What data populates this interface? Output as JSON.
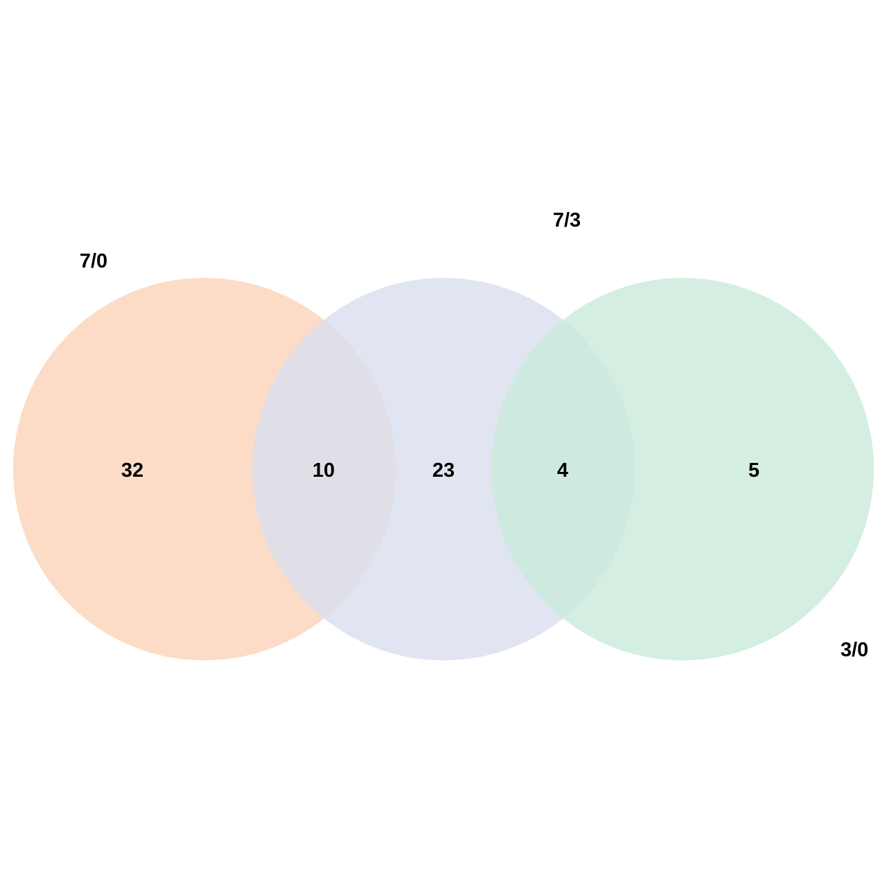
{
  "colors": {
    "set_a": "#fbd3b9",
    "set_b": "#d8dfee",
    "set_c": "#c9eadb",
    "text": "#000000",
    "background": "#ffffff"
  },
  "sets": [
    {
      "label": "7/0"
    },
    {
      "label": "7/3"
    },
    {
      "label": "3/0"
    }
  ],
  "regions": {
    "a_only": "32",
    "a_and_b": "10",
    "b_only": "23",
    "b_and_c": "4",
    "c_only": "5"
  }
}
